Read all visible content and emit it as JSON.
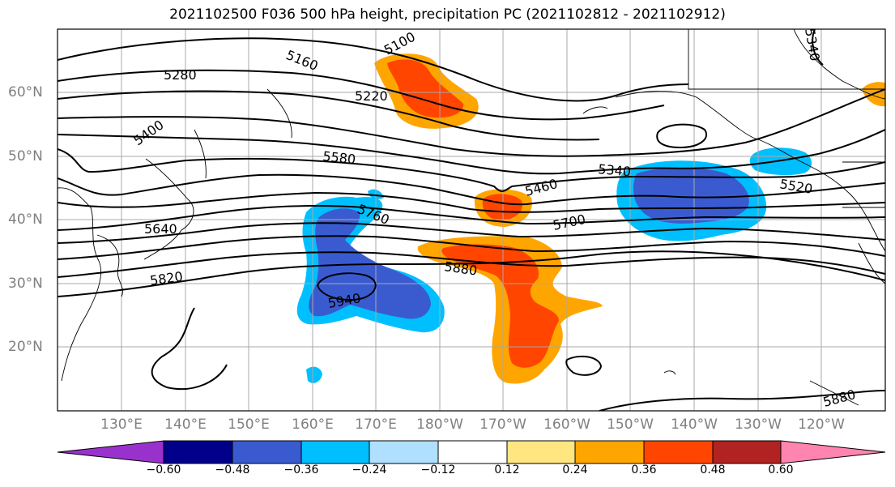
{
  "title": "2021102500 F036 500 hPa height, precipitation PC (2021102812 - 2021102912)",
  "lon_labels": [
    "130°E",
    "140°E",
    "150°E",
    "160°E",
    "170°E",
    "180°W",
    "170°W",
    "160°W",
    "150°W",
    "140°W",
    "130°W",
    "120°W"
  ],
  "lat_labels": [
    "60°N",
    "50°N",
    "40°N",
    "30°N",
    "20°N"
  ],
  "contour_labels": [
    "5100",
    "5160",
    "5280",
    "5220",
    "5400",
    "5580",
    "5340",
    "5460",
    "5520",
    "5760",
    "5640",
    "5700",
    "5880",
    "5820",
    "5940",
    "5880",
    "5340"
  ],
  "colorbar": {
    "ticks": [
      "−0.60",
      "−0.48",
      "−0.36",
      "−0.24",
      "−0.12",
      "0.12",
      "0.24",
      "0.36",
      "0.48",
      "0.60"
    ],
    "colors": [
      "#9932cc",
      "#00008b",
      "#3a5bd0",
      "#00bfff",
      "#b0e0ff",
      "#ffffff",
      "#ffe680",
      "#ffa500",
      "#ff4500",
      "#b22222",
      "#ff85b0"
    ]
  },
  "accent_colors": {
    "neg": "#3a5bd0",
    "neg_light": "#00bfff",
    "pos": "#ffa500",
    "pos_strong": "#ff4500"
  }
}
